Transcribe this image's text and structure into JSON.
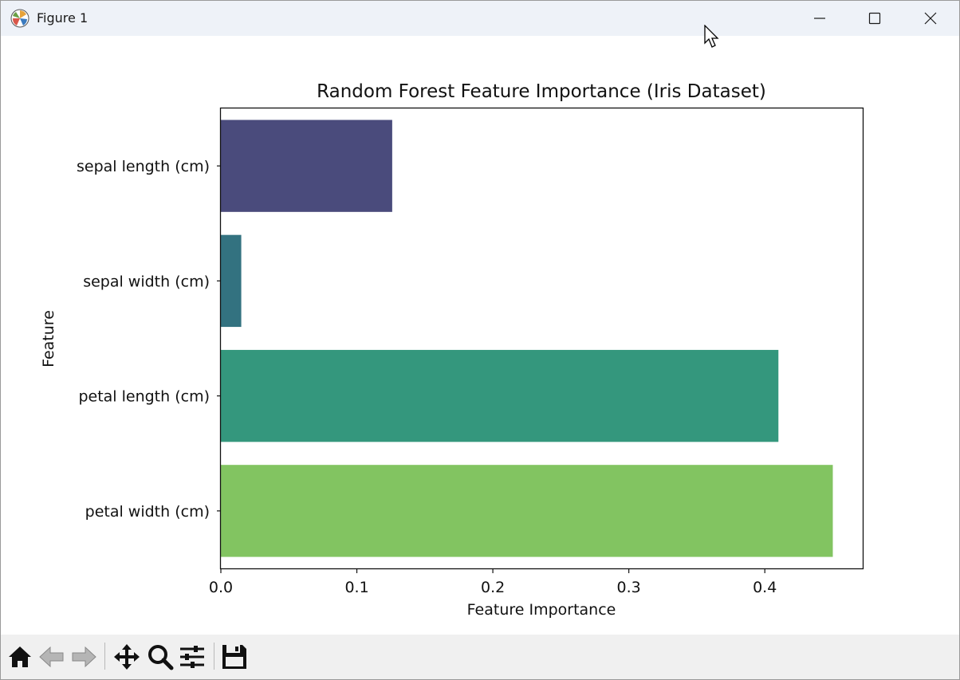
{
  "window": {
    "title": "Figure 1",
    "icons": {
      "app": "matplotlib-icon",
      "minimize": "minimize-icon",
      "maximize": "maximize-icon",
      "close": "close-icon"
    }
  },
  "toolbar": {
    "buttons": [
      {
        "name": "home-icon",
        "tooltip": "Reset original view"
      },
      {
        "name": "back-arrow-icon",
        "tooltip": "Back to previous view"
      },
      {
        "name": "forward-arrow-icon",
        "tooltip": "Forward to next view"
      },
      {
        "name": "pan-move-icon",
        "tooltip": "Pan axes"
      },
      {
        "name": "zoom-magnifier-icon",
        "tooltip": "Zoom to rectangle"
      },
      {
        "name": "configure-subplots-icon",
        "tooltip": "Configure subplots"
      },
      {
        "name": "save-floppy-icon",
        "tooltip": "Save the figure"
      }
    ]
  },
  "chart_data": {
    "type": "bar",
    "orientation": "horizontal",
    "title": "Random Forest Feature Importance (Iris Dataset)",
    "xlabel": "Feature Importance",
    "ylabel": "Feature",
    "categories": [
      "sepal length (cm)",
      "sepal width (cm)",
      "petal length (cm)",
      "petal width (cm)"
    ],
    "values": [
      0.126,
      0.015,
      0.41,
      0.45
    ],
    "colors": [
      "#4a4b7c",
      "#337280",
      "#34977d",
      "#82c461"
    ],
    "xlim": [
      0.0,
      0.472
    ],
    "xticks": [
      "0.0",
      "0.1",
      "0.2",
      "0.3",
      "0.4"
    ],
    "grid": false,
    "legend": "none"
  }
}
